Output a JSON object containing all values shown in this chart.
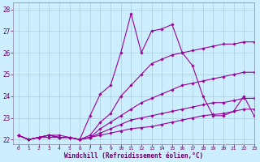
{
  "xlabel": "Windchill (Refroidissement éolien,°C)",
  "xlim": [
    -0.5,
    23
  ],
  "ylim": [
    21.8,
    28.3
  ],
  "yticks": [
    22,
    23,
    24,
    25,
    26,
    27,
    28
  ],
  "xticks": [
    0,
    1,
    2,
    3,
    4,
    5,
    6,
    7,
    8,
    9,
    10,
    11,
    12,
    13,
    14,
    15,
    16,
    17,
    18,
    19,
    20,
    21,
    22,
    23
  ],
  "background_color": "#cceeff",
  "grid_color": "#aaccdd",
  "line_color": "#990099",
  "lines": [
    [
      22.2,
      22.0,
      22.1,
      22.2,
      22.2,
      22.1,
      22.0,
      23.1,
      24.1,
      24.5,
      26.0,
      27.8,
      26.0,
      27.0,
      27.1,
      27.3,
      26.0,
      25.4,
      24.0,
      23.1,
      23.1,
      23.3,
      24.0,
      23.1
    ],
    [
      22.2,
      22.0,
      22.1,
      22.2,
      22.1,
      22.1,
      22.0,
      22.2,
      22.8,
      23.2,
      24.0,
      24.5,
      25.0,
      25.5,
      25.7,
      25.9,
      26.0,
      26.1,
      26.2,
      26.3,
      26.4,
      26.4,
      26.5,
      26.5
    ],
    [
      22.2,
      22.0,
      22.1,
      22.1,
      22.1,
      22.1,
      22.0,
      22.1,
      22.5,
      22.8,
      23.1,
      23.4,
      23.7,
      23.9,
      24.1,
      24.3,
      24.5,
      24.6,
      24.7,
      24.8,
      24.9,
      25.0,
      25.1,
      25.1
    ],
    [
      22.2,
      22.0,
      22.1,
      22.2,
      22.1,
      22.1,
      22.0,
      22.1,
      22.3,
      22.5,
      22.7,
      22.9,
      23.0,
      23.1,
      23.2,
      23.3,
      23.4,
      23.5,
      23.6,
      23.7,
      23.7,
      23.8,
      23.9,
      23.9
    ],
    [
      22.2,
      22.0,
      22.1,
      22.2,
      22.1,
      22.1,
      22.0,
      22.1,
      22.2,
      22.3,
      22.4,
      22.5,
      22.55,
      22.6,
      22.7,
      22.8,
      22.9,
      23.0,
      23.1,
      23.15,
      23.2,
      23.3,
      23.4,
      23.4
    ]
  ]
}
